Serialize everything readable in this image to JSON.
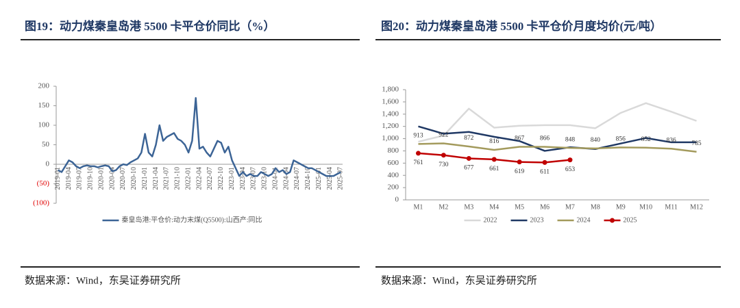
{
  "chart_data": [
    {
      "type": "line",
      "title": "图19：动力煤秦皇岛港 5500 卡平仓价同比（%）",
      "source": "数据来源：Wind，东吴证券研究所",
      "categories": [
        "2019-01",
        null,
        null,
        "2019-04",
        null,
        null,
        "2019-07",
        null,
        null,
        "2019-10",
        null,
        null,
        "2020-01",
        null,
        null,
        "2020-04",
        null,
        null,
        "2020-07",
        null,
        null,
        "2020-10",
        null,
        null,
        "2021-01",
        null,
        null,
        "2021-04",
        null,
        null,
        "2021-07",
        null,
        null,
        "2021-10",
        null,
        null,
        "2022-01",
        null,
        null,
        "2022-04",
        null,
        null,
        "2022-07",
        null,
        null,
        "2022-10",
        null,
        null,
        "2023-01",
        null,
        null,
        "2023-04",
        null,
        null,
        "2023-07",
        null,
        null,
        "2023-10",
        null,
        null,
        "2024-01",
        null,
        null,
        "2024-04",
        null,
        null,
        "2024-07",
        null,
        null,
        "2024-10",
        null,
        null,
        "2025-01",
        null,
        null,
        "2025-04",
        null,
        null,
        "2025-07"
      ],
      "series": [
        {
          "name": "秦皇岛港:平仓价:动力末煤(Q5500):山西产:同比",
          "color": "#3c6496",
          "values": [
            -15,
            -20,
            -5,
            10,
            5,
            -5,
            -10,
            -5,
            -3,
            -5,
            -5,
            -8,
            -5,
            -3,
            -5,
            -18,
            -15,
            -5,
            0,
            -2,
            5,
            10,
            15,
            30,
            78,
            30,
            20,
            50,
            100,
            60,
            70,
            75,
            80,
            65,
            60,
            50,
            30,
            60,
            170,
            40,
            45,
            30,
            20,
            40,
            60,
            55,
            30,
            45,
            10,
            -10,
            -30,
            -20,
            -30,
            -25,
            -30,
            -30,
            -20,
            -25,
            -30,
            -25,
            -10,
            -20,
            -15,
            -25,
            -20,
            10,
            5,
            0,
            -5,
            -10,
            -10,
            -15,
            -20,
            -25,
            -30,
            -30,
            -30,
            -25,
            -20
          ]
        }
      ],
      "ylim": [
        -100,
        200
      ],
      "yticks": [
        200,
        150,
        100,
        50,
        0,
        {
          "value": -50,
          "label": "(50)"
        },
        {
          "value": -100,
          "label": "(100)"
        }
      ],
      "negative_tick_color": "#e00000",
      "grid": false
    },
    {
      "type": "line",
      "title": "图20：动力煤秦皇岛港 5500 卡平仓价月度均价(元/吨）",
      "source": "数据来源：Wind，东吴证券研究所",
      "categories": [
        "M1",
        "M2",
        "M3",
        "M4",
        "M5",
        "M6",
        "M7",
        "M8",
        "M9",
        "M10",
        "M11",
        "M12"
      ],
      "series": [
        {
          "name": "2022",
          "color": "#d9d9d9",
          "values": [
            950,
            1050,
            1490,
            1180,
            1210,
            1220,
            1220,
            1170,
            1420,
            1580,
            1440,
            1290
          ]
        },
        {
          "name": "2023",
          "color": "#1f3864",
          "values": [
            1200,
            1080,
            1110,
            1030,
            960,
            800,
            860,
            830,
            920,
            1010,
            940,
            940
          ]
        },
        {
          "name": "2024",
          "color": "#a39a5c",
          "values": [
            913,
            922,
            872,
            816,
            867,
            866,
            848,
            840,
            856,
            852,
            836,
            785
          ],
          "data_labels": "above"
        },
        {
          "name": "2025",
          "color": "#c00000",
          "values": [
            761,
            730,
            677,
            661,
            619,
            611,
            653,
            null,
            null,
            null,
            null,
            null
          ],
          "data_labels": "below",
          "marker": "circle"
        }
      ],
      "ylim": [
        0,
        1800
      ],
      "yticks": [
        0,
        200,
        400,
        600,
        800,
        {
          "value": 1000,
          "label": "1,000"
        },
        {
          "value": 1200,
          "label": "1,200"
        },
        {
          "value": 1400,
          "label": "1,400"
        },
        {
          "value": 1600,
          "label": "1,600"
        },
        {
          "value": 1800,
          "label": "1,800"
        }
      ],
      "grid": false
    }
  ]
}
